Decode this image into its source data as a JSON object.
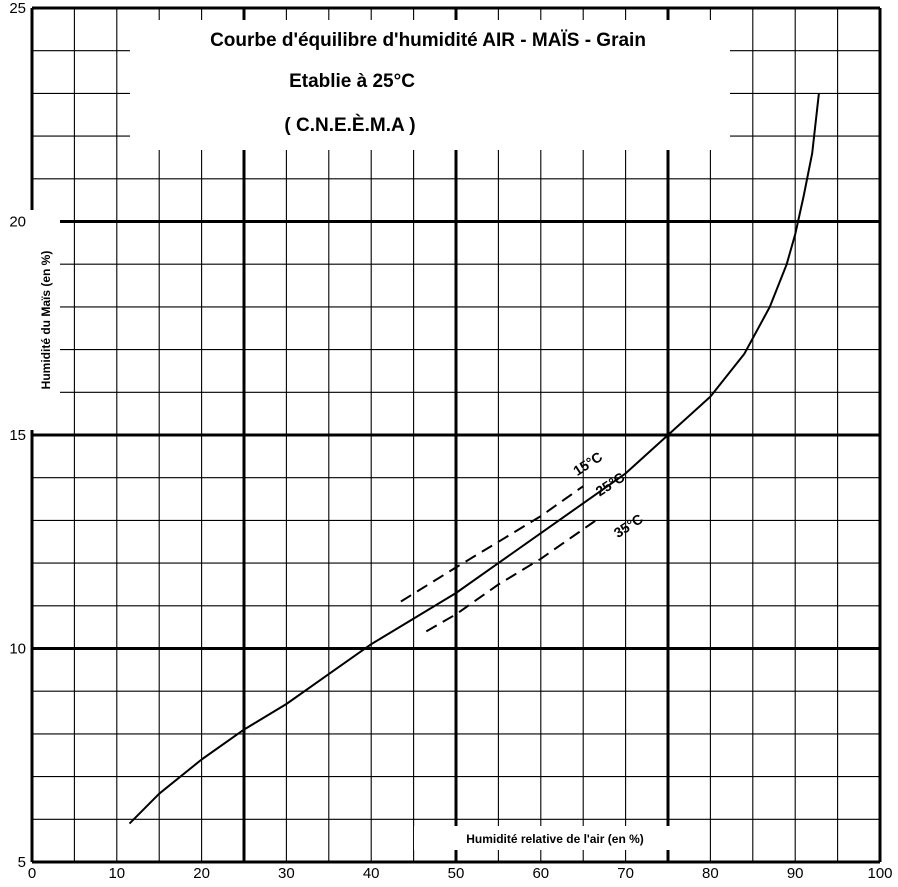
{
  "chart_data": {
    "type": "line",
    "title": "Courbe   d'équilibre  d'humidité  AIR - MAÏS - Grain",
    "subtitle": "Etablie à 25°C",
    "source": "( C.N.E.È.M.A )",
    "xlabel": "Humidité relative de l'air (en %)",
    "ylabel": "Humidité du Maïs (en %)",
    "xlim": [
      0,
      100
    ],
    "ylim": [
      5,
      25
    ],
    "x_ticks": [
      0,
      10,
      20,
      30,
      40,
      50,
      60,
      70,
      80,
      90,
      100
    ],
    "y_ticks": [
      5,
      10,
      15,
      20,
      25
    ],
    "grid": true,
    "series": [
      {
        "name": "25°C",
        "style": "solid",
        "x": [
          11.5,
          15,
          20,
          25,
          30,
          35,
          40,
          45,
          50,
          55,
          60,
          65,
          70,
          75,
          80,
          84,
          87,
          89,
          90,
          91,
          92,
          92.8
        ],
        "y": [
          5.9,
          6.6,
          7.4,
          8.1,
          8.7,
          9.4,
          10.1,
          10.7,
          11.3,
          12.0,
          12.7,
          13.4,
          14.1,
          15.0,
          15.9,
          16.9,
          18.0,
          19.0,
          19.7,
          20.6,
          21.6,
          23.0
        ]
      },
      {
        "name": "15°C",
        "style": "dashed",
        "x": [
          43.5,
          50,
          55,
          60,
          65
        ],
        "y": [
          11.1,
          11.9,
          12.5,
          13.1,
          13.8
        ]
      },
      {
        "name": "35°C",
        "style": "dashed",
        "x": [
          46.5,
          50,
          55,
          60,
          66.5
        ],
        "y": [
          10.4,
          10.8,
          11.5,
          12.1,
          13.0
        ]
      }
    ]
  }
}
